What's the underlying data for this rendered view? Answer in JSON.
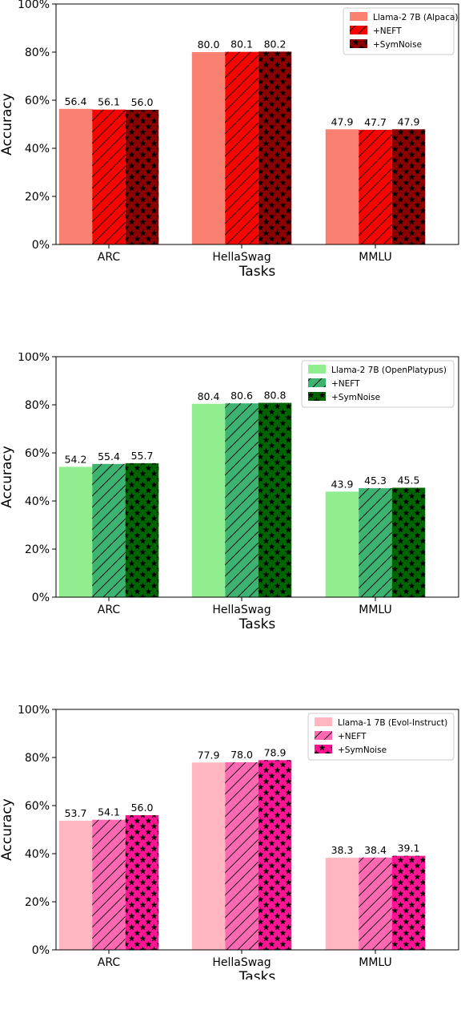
{
  "chart_data": [
    {
      "type": "bar",
      "title": "",
      "xlabel": "Tasks",
      "ylabel": "Accuracy",
      "ylim": [
        0,
        100
      ],
      "yticks": [
        "0%",
        "20%",
        "40%",
        "60%",
        "80%",
        "100%"
      ],
      "categories": [
        "ARC",
        "HellaSwag",
        "MMLU"
      ],
      "legend_position": "top-right",
      "grid": false,
      "series": [
        {
          "name": "Llama-2 7B (Alpaca)",
          "values": [
            56.4,
            80.0,
            47.9
          ],
          "labels": [
            "56.4",
            "80.0",
            "47.9"
          ],
          "color": "#FA8072",
          "pattern": "none"
        },
        {
          "name": "+NEFT",
          "values": [
            56.1,
            80.1,
            47.7
          ],
          "labels": [
            "56.1",
            "80.1",
            "47.7"
          ],
          "color": "#FF0000",
          "pattern": "hatch"
        },
        {
          "name": "+SymNoise",
          "values": [
            56.0,
            80.2,
            47.9
          ],
          "labels": [
            "56.0",
            "80.2",
            "47.9"
          ],
          "color": "#8B0000",
          "pattern": "stars"
        }
      ]
    },
    {
      "type": "bar",
      "title": "",
      "xlabel": "Tasks",
      "ylabel": "Accuracy",
      "ylim": [
        0,
        100
      ],
      "yticks": [
        "0%",
        "20%",
        "40%",
        "60%",
        "80%",
        "100%"
      ],
      "categories": [
        "ARC",
        "HellaSwag",
        "MMLU"
      ],
      "legend_position": "top-right",
      "grid": false,
      "series": [
        {
          "name": "Llama-2 7B (OpenPlatypus)",
          "values": [
            54.2,
            80.4,
            43.9
          ],
          "labels": [
            "54.2",
            "80.4",
            "43.9"
          ],
          "color": "#90EE90",
          "pattern": "none"
        },
        {
          "name": "+NEFT",
          "values": [
            55.4,
            80.6,
            45.3
          ],
          "labels": [
            "55.4",
            "80.6",
            "45.3"
          ],
          "color": "#3CB371",
          "pattern": "hatch"
        },
        {
          "name": "+SymNoise",
          "values": [
            55.7,
            80.8,
            45.5
          ],
          "labels": [
            "55.7",
            "80.8",
            "45.5"
          ],
          "color": "#006400",
          "pattern": "stars"
        }
      ]
    },
    {
      "type": "bar",
      "title": "",
      "xlabel": "Tasks",
      "ylabel": "Accuracy",
      "ylim": [
        0,
        100
      ],
      "yticks": [
        "0%",
        "20%",
        "40%",
        "60%",
        "80%",
        "100%"
      ],
      "categories": [
        "ARC",
        "HellaSwag",
        "MMLU"
      ],
      "legend_position": "top-right",
      "grid": false,
      "series": [
        {
          "name": "Llama-1 7B (Evol-Instruct)",
          "values": [
            53.7,
            77.9,
            38.3
          ],
          "labels": [
            "53.7",
            "77.9",
            "38.3"
          ],
          "color": "#FFB6C1",
          "pattern": "none"
        },
        {
          "name": "+NEFT",
          "values": [
            54.1,
            78.0,
            38.4
          ],
          "labels": [
            "54.1",
            "78.0",
            "38.4"
          ],
          "color": "#FF69B4",
          "pattern": "hatch"
        },
        {
          "name": "+SymNoise",
          "values": [
            56.0,
            78.9,
            39.1
          ],
          "labels": [
            "56.0",
            "78.9",
            "39.1"
          ],
          "color": "#FF1493",
          "pattern": "stars"
        }
      ]
    }
  ]
}
